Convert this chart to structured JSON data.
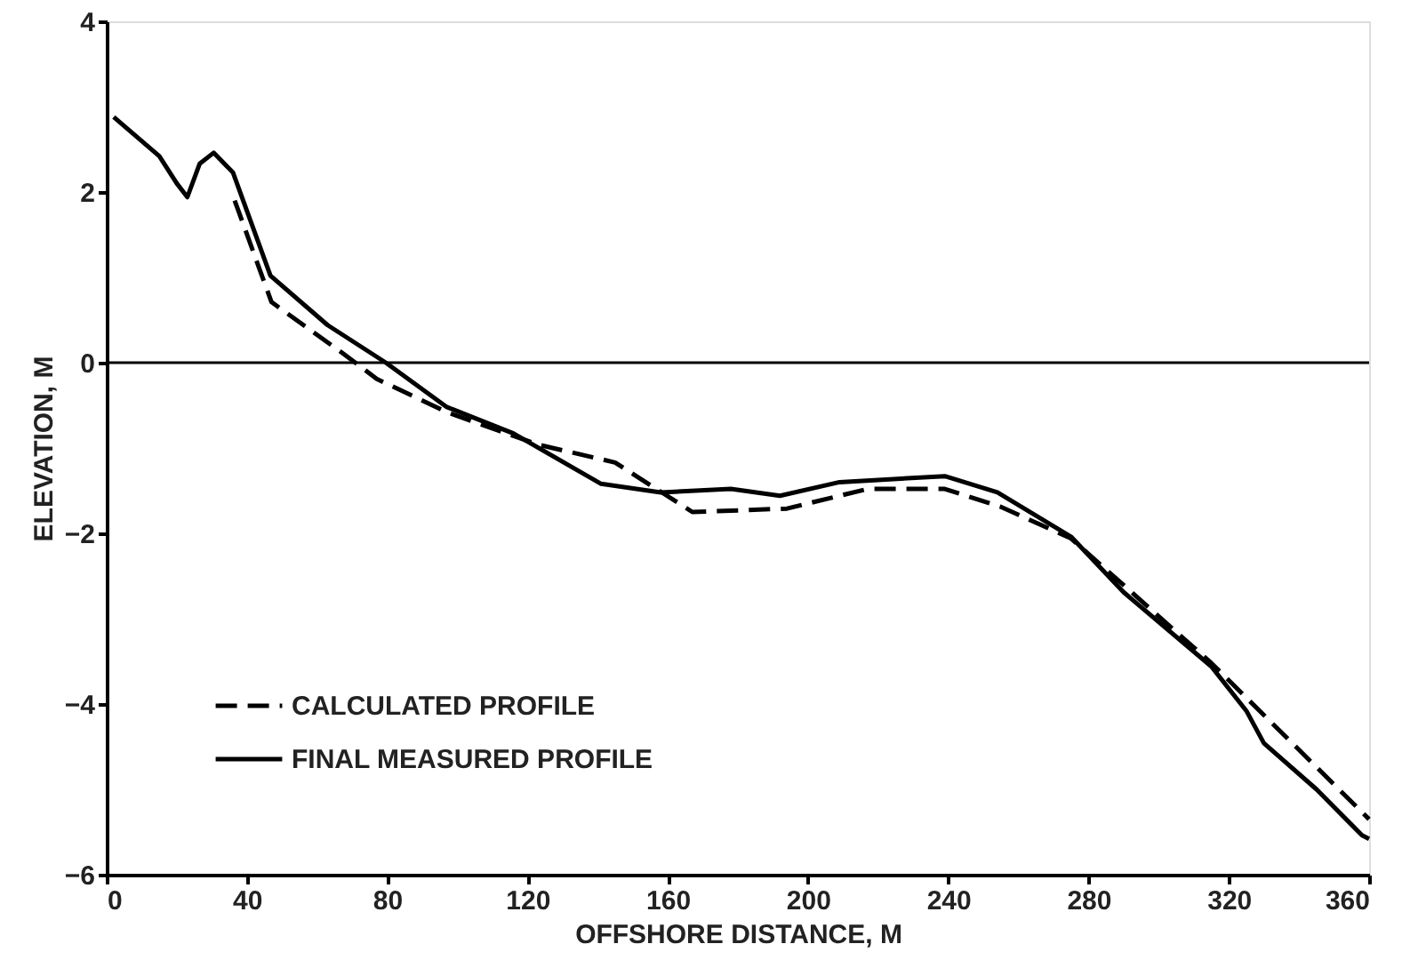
{
  "chart_data": {
    "type": "line",
    "xlabel": "OFFSHORE DISTANCE, M",
    "ylabel": "ELEVATION, M",
    "xlim": [
      0,
      360
    ],
    "xticks": [
      0,
      40,
      80,
      120,
      160,
      200,
      240,
      280,
      320,
      360
    ],
    "ylim": [
      -6,
      4
    ],
    "yticks": [
      -6,
      -4,
      -2,
      0,
      2,
      4
    ],
    "grid": false,
    "legend": "left",
    "marker": "none",
    "ref_lines": [
      {
        "axis": "y",
        "value": 0,
        "color": "#000000"
      }
    ],
    "series": [
      {
        "name": "CALCULATED PROFILE",
        "color": "#000000",
        "line_style": "dashed",
        "x": [
          36.5,
          47,
          67,
          77,
          97,
          123,
          145,
          167,
          194,
          217,
          239,
          255,
          275,
          315,
          360
        ],
        "values": [
          1.9,
          0.71,
          0.12,
          -0.19,
          -0.58,
          -0.96,
          -1.17,
          -1.75,
          -1.71,
          -1.48,
          -1.48,
          -1.69,
          -2.06,
          -3.52,
          -5.35
        ]
      },
      {
        "name": "FINAL MEASURED PROFILE",
        "color": "#000000",
        "line_style": "solid",
        "x": [
          2,
          15,
          20,
          23,
          26.5,
          30.5,
          36,
          46.7,
          63,
          79.6,
          97,
          116,
          141,
          158,
          178,
          192,
          209,
          239,
          254,
          275,
          290,
          315,
          325,
          330,
          345,
          358,
          360
        ],
        "values": [
          2.88,
          2.42,
          2.1,
          1.94,
          2.33,
          2.46,
          2.23,
          1.02,
          0.44,
          0,
          -0.52,
          -0.83,
          -1.42,
          -1.52,
          -1.48,
          -1.56,
          -1.4,
          -1.33,
          -1.52,
          -2.04,
          -2.69,
          -3.56,
          -4.08,
          -4.46,
          -5.0,
          -5.54,
          -5.58
        ]
      }
    ]
  }
}
